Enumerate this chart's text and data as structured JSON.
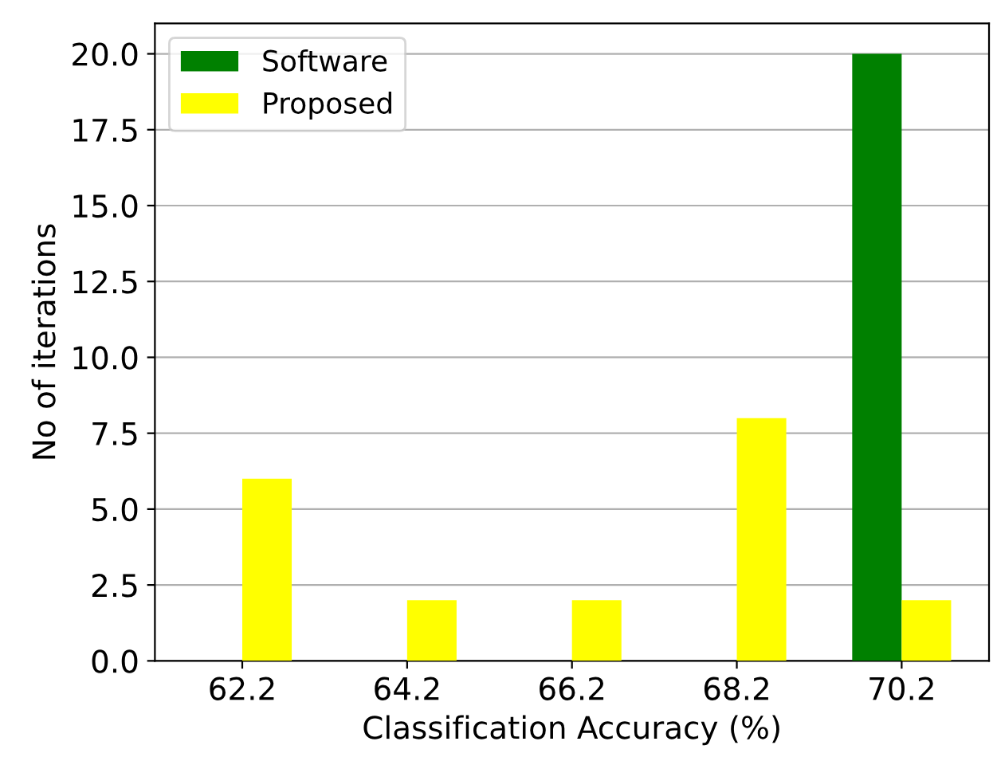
{
  "chart_data": {
    "type": "bar",
    "xlabel": "Classification Accuracy (%)",
    "ylabel": "No of iterations",
    "categories": [
      "62.2",
      "64.2",
      "66.2",
      "68.2",
      "70.2"
    ],
    "series": [
      {
        "name": "Software",
        "color": "#008000",
        "values": [
          0,
          0,
          0,
          0,
          20
        ]
      },
      {
        "name": "Proposed",
        "color": "#ffff00",
        "values": [
          6,
          2,
          2,
          8,
          2
        ]
      }
    ],
    "ylim": [
      0,
      21
    ],
    "yticks": [
      {
        "value": 0,
        "label": "0.0"
      },
      {
        "value": 2.5,
        "label": "2.5"
      },
      {
        "value": 5,
        "label": "5.0"
      },
      {
        "value": 7.5,
        "label": "7.5"
      },
      {
        "value": 10,
        "label": "10.0"
      },
      {
        "value": 12.5,
        "label": "12.5"
      },
      {
        "value": 15,
        "label": "15.0"
      },
      {
        "value": 17.5,
        "label": "17.5"
      },
      {
        "value": 20,
        "label": "20.0"
      }
    ],
    "grid": "y",
    "legend": "top left"
  }
}
